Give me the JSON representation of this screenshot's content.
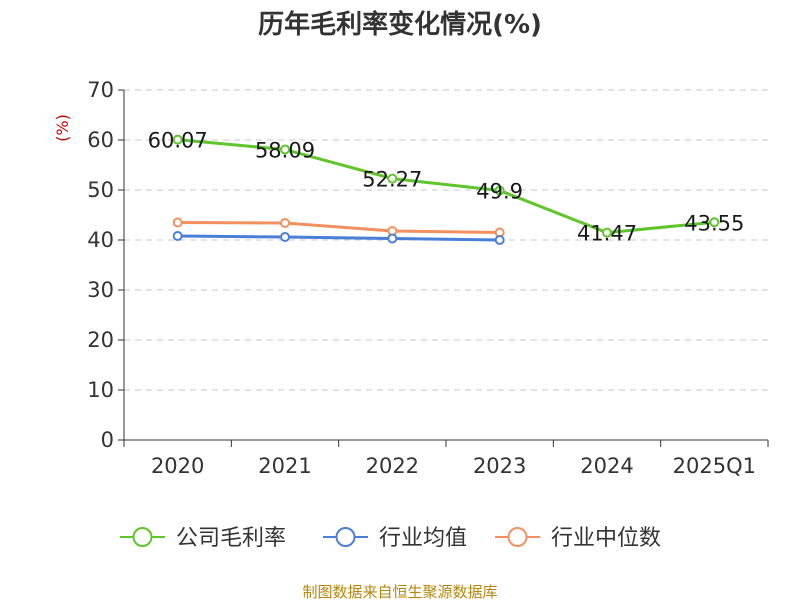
{
  "chart_data": {
    "type": "line",
    "title": "历年毛利率变化情况(%)",
    "ylabel": "(%)",
    "xlabel": "",
    "categories": [
      "2020",
      "2021",
      "2022",
      "2023",
      "2024",
      "2025Q1"
    ],
    "ylim": [
      0,
      70
    ],
    "yticks": [
      0,
      10,
      20,
      30,
      40,
      50,
      60,
      70
    ],
    "grid": true,
    "legend_position": "bottom",
    "series": [
      {
        "name": "公司毛利率",
        "color": "#5ec52a",
        "values": [
          60.07,
          58.09,
          52.27,
          49.9,
          41.47,
          43.55
        ],
        "labels": [
          "60.07",
          "58.09",
          "52.27",
          "49.9",
          "41.47",
          "43.55"
        ]
      },
      {
        "name": "行业均值",
        "color": "#4a7fd8",
        "values": [
          40.8,
          40.6,
          40.3,
          40.0,
          null,
          null
        ]
      },
      {
        "name": "行业中位数",
        "color": "#f29060",
        "values": [
          43.5,
          43.4,
          41.8,
          41.5,
          null,
          null
        ]
      }
    ]
  },
  "source": "制图数据来自恒生聚源数据库"
}
